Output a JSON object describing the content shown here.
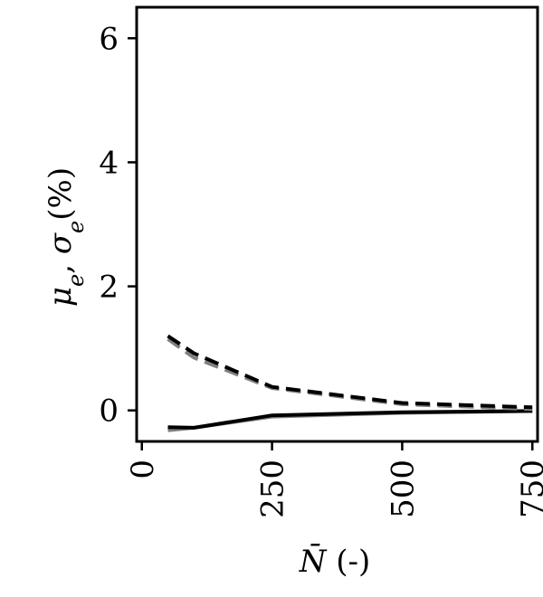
{
  "chart_data": {
    "type": "line",
    "xlabel": "N̄ (-)",
    "ylabel": "μe, σe(%)",
    "xlim": [
      -10,
      760
    ],
    "ylim": [
      -0.5,
      6.5
    ],
    "xticks": [
      0,
      250,
      500,
      750
    ],
    "yticks": [
      0,
      2,
      4,
      6
    ],
    "grid": false,
    "legend": "none",
    "series": [
      {
        "style": "solid",
        "color": "#808080",
        "x": [
          50,
          100,
          250,
          500,
          750
        ],
        "y": [
          -0.32,
          -0.28,
          -0.1,
          -0.04,
          -0.01
        ]
      },
      {
        "style": "solid",
        "color": "#000000",
        "x": [
          50,
          100,
          250,
          500,
          750
        ],
        "y": [
          -0.27,
          -0.28,
          -0.08,
          -0.03,
          -0.01
        ]
      },
      {
        "style": "dashed",
        "color": "#808080",
        "x": [
          50,
          100,
          250,
          500,
          750
        ],
        "y": [
          1.15,
          0.85,
          0.36,
          0.1,
          0.02
        ]
      },
      {
        "style": "dashed",
        "color": "#000000",
        "x": [
          50,
          100,
          250,
          500,
          750
        ],
        "y": [
          1.2,
          0.92,
          0.38,
          0.12,
          0.05
        ]
      }
    ]
  }
}
